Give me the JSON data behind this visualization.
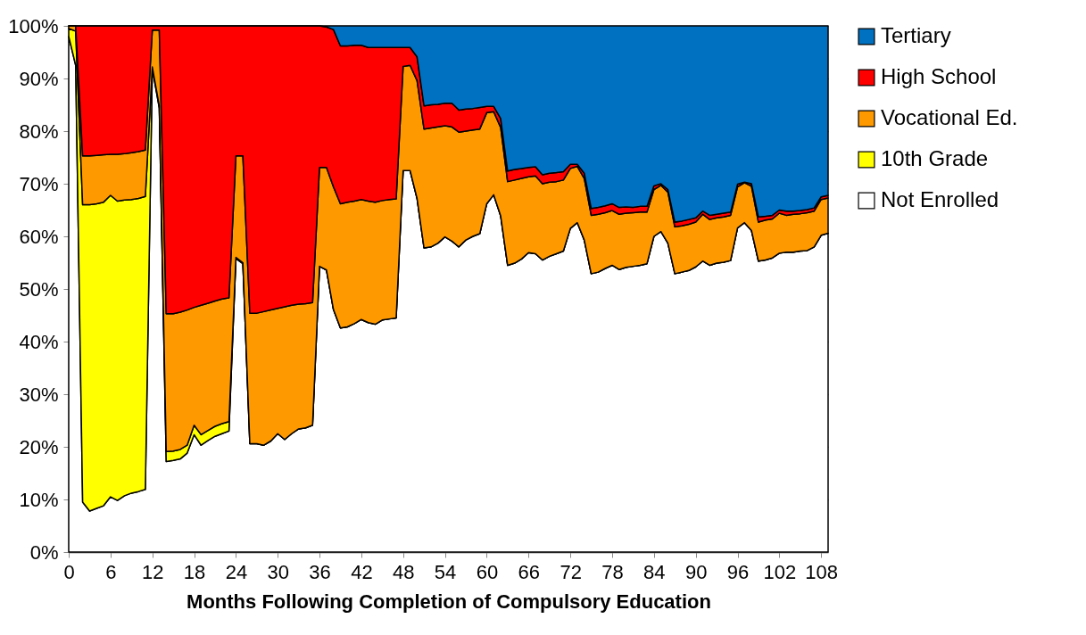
{
  "chart_data": {
    "type": "area",
    "stacked": true,
    "xlabel": "Months Following  Completion of Compulsory Education",
    "x": [
      0,
      1,
      2,
      3,
      4,
      5,
      6,
      7,
      8,
      9,
      10,
      11,
      12,
      13,
      14,
      15,
      16,
      17,
      18,
      19,
      20,
      21,
      22,
      23,
      24,
      25,
      26,
      27,
      28,
      29,
      30,
      31,
      32,
      33,
      34,
      35,
      36,
      37,
      38,
      39,
      40,
      41,
      42,
      43,
      44,
      45,
      46,
      47,
      48,
      49,
      50,
      51,
      52,
      53,
      54,
      55,
      56,
      57,
      58,
      59,
      60,
      61,
      62,
      63,
      64,
      65,
      66,
      67,
      68,
      69,
      70,
      71,
      72,
      73,
      74,
      75,
      76,
      77,
      78,
      79,
      80,
      81,
      82,
      83,
      84,
      85,
      86,
      87,
      88,
      89,
      90,
      91,
      92,
      93,
      94,
      95,
      96,
      97,
      98,
      99,
      100,
      101,
      102,
      103,
      104,
      105,
      106,
      107,
      108,
      109
    ],
    "series": [
      {
        "name": "Not Enrolled",
        "color": "#ffffff",
        "values": [
          98,
          92.5,
          9.5,
          7.8,
          8.3,
          8.8,
          10.5,
          9.8,
          10.7,
          11.2,
          11.5,
          11.9,
          91.9,
          84.4,
          17.2,
          17.4,
          17.7,
          18.8,
          22.3,
          20.3,
          21.2,
          22.0,
          22.5,
          23.0,
          55.8,
          54.8,
          20.6,
          20.6,
          20.3,
          21.1,
          22.5,
          21.4,
          22.5,
          23.4,
          23.6,
          24.1,
          54.3,
          53.6,
          46.1,
          42.6,
          42.8,
          43.4,
          44.2,
          43.6,
          43.3,
          44.1,
          44.3,
          44.5,
          72.5,
          72.5,
          67.2,
          57.8,
          58.0,
          58.7,
          59.9,
          59.1,
          58.0,
          59.3,
          60.0,
          60.5,
          66.2,
          67.9,
          63.9,
          54.5,
          54.9,
          55.7,
          56.9,
          56.7,
          55.5,
          56.2,
          56.7,
          57.2,
          61.5,
          62.6,
          59.3,
          52.9,
          53.2,
          53.9,
          54.5,
          53.7,
          54.1,
          54.3,
          54.5,
          54.8,
          60.0,
          60.9,
          58.7,
          52.9,
          53.2,
          53.5,
          54.2,
          55.3,
          54.5,
          54.9,
          55.1,
          55.4,
          61.6,
          62.6,
          61.1,
          55.3,
          55.5,
          55.9,
          56.8,
          57.0,
          57.0,
          57.2,
          57.3,
          58.0,
          60.2,
          60.6
        ]
      },
      {
        "name": "10th Grade",
        "color": "#ffff00",
        "values": [
          1.5,
          6.5,
          56.5,
          58.2,
          57.9,
          57.7,
          57.3,
          56.9,
          56.2,
          55.8,
          55.7,
          55.7,
          0.3,
          0.4,
          1.9,
          1.8,
          1.8,
          1.5,
          1.8,
          2.0,
          1.9,
          1.9,
          1.9,
          1.8,
          0.2,
          0.2,
          0,
          0,
          0,
          0,
          0,
          0,
          0,
          0,
          0,
          0,
          0,
          0,
          0,
          0,
          0,
          0,
          0,
          0,
          0,
          0,
          0,
          0,
          0,
          0,
          0,
          0,
          0,
          0,
          0,
          0,
          0,
          0,
          0,
          0,
          0,
          0,
          0,
          0,
          0,
          0,
          0,
          0,
          0,
          0,
          0,
          0,
          0,
          0,
          0,
          0,
          0,
          0,
          0,
          0,
          0,
          0,
          0,
          0,
          0,
          0,
          0,
          0,
          0,
          0,
          0,
          0,
          0,
          0,
          0,
          0,
          0,
          0,
          0,
          0,
          0,
          0,
          0,
          0,
          0,
          0,
          0,
          0,
          0,
          0
        ]
      },
      {
        "name": "Vocational Ed.",
        "color": "#ff9900",
        "values": [
          0.5,
          1,
          9.3,
          9.3,
          9.2,
          9.0,
          7.8,
          8.9,
          8.8,
          8.9,
          8.9,
          8.8,
          7.0,
          14.4,
          26.2,
          26.1,
          26.1,
          25.7,
          22.4,
          24.6,
          24.2,
          23.8,
          23.7,
          23.5,
          19.3,
          20.3,
          24.8,
          24.8,
          25.4,
          24.9,
          23.8,
          25.2,
          24.4,
          23.7,
          23.6,
          23.3,
          18.8,
          19.5,
          23.3,
          23.6,
          23.7,
          23.3,
          22.8,
          23.1,
          23.2,
          22.7,
          22.7,
          22.6,
          19.8,
          20.0,
          22.4,
          22.6,
          22.6,
          22.1,
          21.1,
          21.7,
          21.8,
          20.7,
          20.2,
          19.9,
          17.3,
          15.8,
          16.8,
          15.9,
          15.8,
          15.3,
          14.4,
          14.8,
          14.5,
          14.1,
          13.7,
          13.5,
          11.4,
          10.7,
          11.7,
          11.1,
          11.0,
          10.6,
          10.4,
          10.5,
          10.3,
          10.2,
          10.1,
          9.8,
          8.9,
          8.8,
          9.7,
          8.9,
          8.8,
          8.8,
          8.5,
          8.9,
          8.7,
          8.6,
          8.6,
          8.6,
          7.8,
          7.6,
          8.4,
          7.4,
          7.6,
          7.4,
          7.6,
          7.0,
          7.2,
          7.1,
          7.2,
          6.8,
          6.8,
          6.7
        ]
      },
      {
        "name": "High School",
        "color": "#ff0000",
        "values": [
          0,
          0,
          24.7,
          24.7,
          24.6,
          24.5,
          24.4,
          24.4,
          24.3,
          24.1,
          23.9,
          23.6,
          0.8,
          0.8,
          54.7,
          54.7,
          54.4,
          54.0,
          53.5,
          53.1,
          52.7,
          52.3,
          51.9,
          51.7,
          24.7,
          24.7,
          54.6,
          54.6,
          54.3,
          54.0,
          53.7,
          53.4,
          53.1,
          52.9,
          52.8,
          52.6,
          26.9,
          26.7,
          29.9,
          30.0,
          29.7,
          29.6,
          29.3,
          29.2,
          29.4,
          29.1,
          28.9,
          28.8,
          3.6,
          3.4,
          4.5,
          4.4,
          4.4,
          4.3,
          4.3,
          4.5,
          4.2,
          4.2,
          4.1,
          4.1,
          1.2,
          1.0,
          1.7,
          2.0,
          2.0,
          1.9,
          1.8,
          1.7,
          1.7,
          1.7,
          1.7,
          1.6,
          0.8,
          0.4,
          1.0,
          1.3,
          1.3,
          1.3,
          1.3,
          1.3,
          1.2,
          1.0,
          1.1,
          1.1,
          0.7,
          0.3,
          0.5,
          0.9,
          0.9,
          0.9,
          0.8,
          0.6,
          0.8,
          0.7,
          0.7,
          0.6,
          0.5,
          0.1,
          0.5,
          1.0,
          0.7,
          0.7,
          0.6,
          0.8,
          0.6,
          0.6,
          0.6,
          0.6,
          0.5,
          0.5
        ]
      },
      {
        "name": "Tertiary",
        "color": "#0070c0",
        "values": [
          0,
          0,
          0,
          0,
          0,
          0,
          0,
          0,
          0,
          0,
          0,
          0,
          0,
          0,
          0,
          0,
          0,
          0,
          0,
          0,
          0,
          0,
          0,
          0,
          0,
          0,
          0,
          0,
          0,
          0,
          0,
          0,
          0,
          0,
          0,
          0,
          0,
          0.2,
          0.7,
          3.8,
          3.8,
          3.7,
          3.7,
          4.1,
          4.1,
          4.1,
          4.1,
          4.1,
          4.1,
          4.1,
          5.9,
          15.2,
          15.0,
          14.9,
          14.7,
          14.7,
          16.0,
          15.8,
          15.7,
          15.5,
          15.3,
          15.3,
          17.6,
          27.6,
          27.3,
          27.1,
          26.9,
          26.8,
          28.3,
          28.0,
          27.9,
          27.7,
          26.3,
          26.3,
          28.0,
          34.7,
          34.5,
          34.2,
          33.8,
          34.5,
          34.4,
          34.5,
          34.3,
          34.3,
          30.4,
          30.0,
          31.1,
          37.3,
          37.1,
          36.8,
          36.5,
          35.2,
          36.0,
          35.8,
          35.6,
          35.4,
          30.1,
          29.7,
          30.0,
          36.3,
          36.2,
          36.0,
          35.0,
          35.2,
          35.2,
          35.1,
          34.9,
          34.6,
          32.5,
          32.2
        ]
      }
    ],
    "xlim": [
      0,
      109
    ],
    "xticks": [
      0,
      6,
      12,
      18,
      24,
      30,
      36,
      42,
      48,
      54,
      60,
      66,
      72,
      78,
      84,
      90,
      96,
      102,
      108
    ],
    "ylim": [
      0,
      100
    ],
    "yticks": [
      {
        "value": 0,
        "label": "0%"
      },
      {
        "value": 10,
        "label": "10%"
      },
      {
        "value": 20,
        "label": "20%"
      },
      {
        "value": 30,
        "label": "30%"
      },
      {
        "value": 40,
        "label": "40%"
      },
      {
        "value": 50,
        "label": "50%"
      },
      {
        "value": 60,
        "label": "60%"
      },
      {
        "value": 70,
        "label": "70%"
      },
      {
        "value": 80,
        "label": "80%"
      },
      {
        "value": 90,
        "label": "90%"
      },
      {
        "value": 100,
        "label": "100%"
      }
    ],
    "grid": "y",
    "legend": "right"
  }
}
